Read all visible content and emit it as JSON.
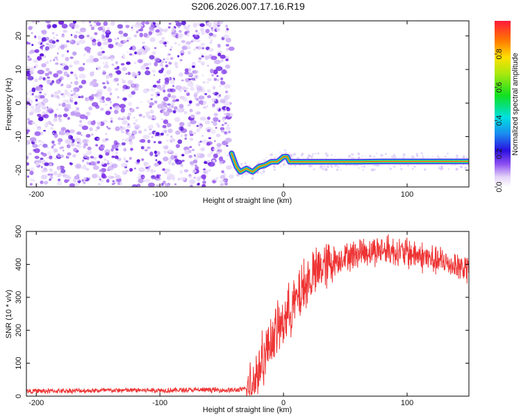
{
  "title": "S206.2026.007.17.16.R19",
  "chart_data": [
    {
      "type": "heatmap",
      "name": "spectrogram",
      "xlabel": "Height of straight line (km)",
      "ylabel": "Frequency (Hz)",
      "xlim": [
        -208,
        150
      ],
      "ylim": [
        -25,
        24.5
      ],
      "xticks": [
        -200,
        -100,
        0,
        100
      ],
      "yticks": [
        -20,
        -10,
        0,
        10,
        20
      ],
      "noise_region_x": [
        -208,
        -42
      ],
      "signal_trace": {
        "x": [
          -42,
          -40,
          -38,
          -35,
          -30,
          -25,
          -20,
          -15,
          -10,
          -5,
          0,
          3,
          5,
          10,
          20,
          40,
          60,
          80,
          100,
          120,
          150
        ],
        "y": [
          -15,
          -17,
          -19,
          -20.5,
          -19.5,
          -20.5,
          -19,
          -18.5,
          -17.5,
          -17.5,
          -16,
          -16,
          -17.5,
          -17.5,
          -17.5,
          -17.5,
          -17.5,
          -17.4,
          -17.4,
          -17.4,
          -17.4
        ]
      }
    },
    {
      "type": "colorbar",
      "name": "amplitude-scale",
      "label": "Normalized spectral amplitude",
      "range": [
        0,
        1
      ],
      "ticks": [
        0.0,
        0.2,
        0.4,
        0.6,
        0.8
      ],
      "tick_labels": [
        "0.0",
        "0.2",
        "0.4",
        "0.6",
        "0.8"
      ]
    },
    {
      "type": "line",
      "name": "snr",
      "xlabel": "Height of straight line (km)",
      "ylabel": "SNR (10 * v/v)",
      "xlim": [
        -208,
        150
      ],
      "ylim": [
        0,
        500
      ],
      "xticks": [
        -200,
        -100,
        0,
        100
      ],
      "yticks": [
        0,
        100,
        200,
        300,
        400,
        500
      ],
      "color": "#ee3333",
      "series": [
        {
          "name": "SNR envelope",
          "x": [
            -208,
            -180,
            -150,
            -120,
            -90,
            -60,
            -40,
            -30,
            -25,
            -20,
            -15,
            -10,
            -5,
            0,
            5,
            10,
            15,
            20,
            25,
            30,
            40,
            50,
            60,
            70,
            80,
            90,
            100,
            110,
            120,
            130,
            140,
            150
          ],
          "values": [
            15,
            16,
            17,
            18,
            18,
            19,
            18,
            22,
            40,
            80,
            130,
            170,
            200,
            230,
            260,
            290,
            320,
            350,
            370,
            390,
            410,
            425,
            435,
            440,
            445,
            440,
            435,
            425,
            415,
            405,
            395,
            385
          ]
        }
      ]
    }
  ]
}
